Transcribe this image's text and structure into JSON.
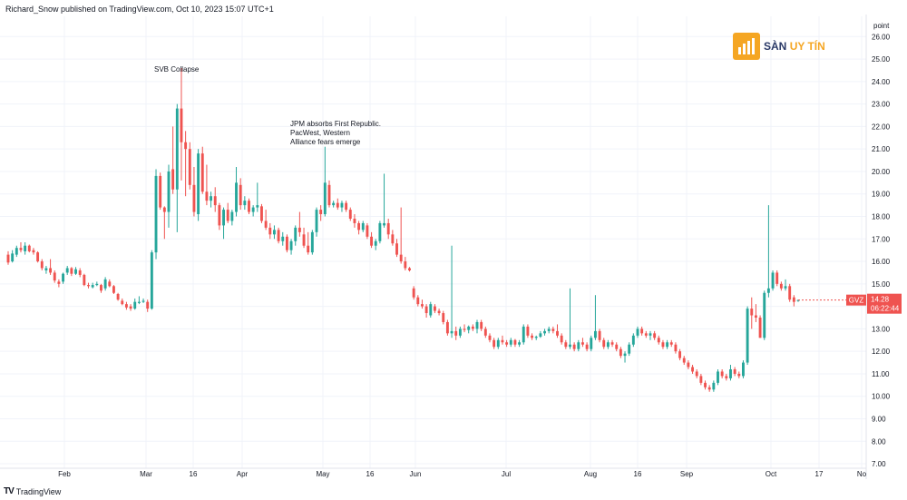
{
  "header": {
    "publisher": "Richard_Snow published on TradingView.com, Oct 10, 2023 15:07 UTC+1"
  },
  "footer": {
    "brand": "TradingView"
  },
  "watermark": {
    "part1": "SÀN",
    "part2": "UY TÍN"
  },
  "colors": {
    "up": "#26a69a",
    "down": "#ef5350",
    "grid": "#f0f3fa",
    "axis_text": "#131722",
    "badge": "#ef5350"
  },
  "chart_data": {
    "type": "candlestick",
    "title": "",
    "y_unit_label": "point",
    "ylim": [
      6.8,
      26.9
    ],
    "y_ticks": [
      "26.00",
      "25.00",
      "24.00",
      "23.00",
      "22.00",
      "21.00",
      "20.00",
      "19.00",
      "18.00",
      "17.00",
      "16.00",
      "15.00",
      "14.00",
      "13.00",
      "12.00",
      "11.00",
      "10.00",
      "9.00",
      "8.00",
      "7.00"
    ],
    "x_tick_labels": [
      "Feb",
      "Mar",
      "16",
      "Apr",
      "May",
      "16",
      "Jun",
      "Jul",
      "Aug",
      "16",
      "Sep",
      "Oct",
      "17",
      "No"
    ],
    "last_price": {
      "symbol": "GVZ",
      "value": "14.28",
      "countdown": "06:22:44"
    },
    "annotations": [
      {
        "text": "SVB Collapse"
      },
      {
        "text": "JPM absorbs First Republic. PacWest, Western Alliance fears emerge"
      }
    ],
    "ohlc": [
      [
        16.3,
        16.45,
        15.85,
        15.95
      ],
      [
        16.0,
        16.5,
        15.95,
        16.35
      ],
      [
        16.3,
        16.7,
        16.2,
        16.6
      ],
      [
        16.6,
        16.85,
        16.4,
        16.5
      ],
      [
        16.45,
        16.85,
        16.3,
        16.7
      ],
      [
        16.7,
        16.75,
        16.4,
        16.45
      ],
      [
        16.5,
        16.6,
        16.3,
        16.4
      ],
      [
        16.4,
        16.45,
        15.95,
        16.0
      ],
      [
        16.0,
        16.1,
        15.6,
        15.7
      ],
      [
        15.6,
        15.8,
        15.45,
        15.7
      ],
      [
        15.7,
        16.1,
        15.4,
        15.5
      ],
      [
        15.5,
        15.6,
        15.05,
        15.15
      ],
      [
        15.1,
        15.2,
        14.85,
        15.0
      ],
      [
        15.1,
        15.5,
        15.0,
        15.45
      ],
      [
        15.5,
        15.8,
        15.4,
        15.7
      ],
      [
        15.7,
        15.75,
        15.35,
        15.45
      ],
      [
        15.45,
        15.75,
        15.4,
        15.65
      ],
      [
        15.6,
        15.7,
        15.3,
        15.4
      ],
      [
        15.4,
        15.45,
        14.9,
        14.95
      ],
      [
        14.95,
        15.05,
        14.8,
        14.9
      ],
      [
        14.85,
        15.05,
        14.8,
        14.95
      ],
      [
        14.95,
        15.1,
        14.9,
        15.0
      ],
      [
        14.95,
        15.0,
        14.6,
        14.7
      ],
      [
        14.8,
        15.3,
        14.7,
        15.2
      ],
      [
        15.1,
        15.2,
        14.85,
        14.9
      ],
      [
        14.9,
        14.95,
        14.55,
        14.6
      ],
      [
        14.55,
        14.6,
        14.25,
        14.3
      ],
      [
        14.25,
        14.35,
        14.05,
        14.1
      ],
      [
        14.1,
        14.2,
        13.85,
        13.95
      ],
      [
        14.0,
        14.1,
        13.8,
        13.9
      ],
      [
        13.9,
        14.35,
        13.85,
        14.2
      ],
      [
        14.15,
        14.45,
        14.1,
        14.2
      ],
      [
        14.2,
        14.35,
        14.15,
        14.25
      ],
      [
        14.2,
        14.3,
        13.75,
        13.9
      ],
      [
        13.9,
        16.5,
        13.85,
        16.4
      ],
      [
        16.4,
        20.1,
        16.1,
        19.8
      ],
      [
        19.8,
        19.95,
        18.3,
        18.4
      ],
      [
        18.4,
        18.45,
        17.0,
        18.2
      ],
      [
        18.2,
        20.3,
        17.5,
        20.0
      ],
      [
        20.1,
        22.0,
        19.0,
        19.2
      ],
      [
        19.2,
        23.0,
        17.3,
        22.8
      ],
      [
        22.8,
        24.6,
        19.6,
        21.3
      ],
      [
        21.3,
        21.8,
        18.9,
        21.0
      ],
      [
        21.0,
        21.3,
        19.2,
        19.4
      ],
      [
        19.4,
        20.2,
        18.0,
        18.2
      ],
      [
        18.1,
        21.0,
        17.8,
        20.8
      ],
      [
        20.8,
        21.1,
        19.0,
        19.1
      ],
      [
        19.1,
        20.3,
        18.5,
        18.7
      ],
      [
        18.7,
        19.1,
        18.4,
        18.9
      ],
      [
        18.9,
        19.3,
        18.2,
        18.5
      ],
      [
        18.5,
        18.6,
        17.4,
        17.6
      ],
      [
        17.6,
        18.4,
        17.0,
        18.3
      ],
      [
        18.3,
        18.6,
        17.7,
        17.8
      ],
      [
        17.8,
        18.3,
        17.6,
        18.2
      ],
      [
        18.2,
        20.2,
        18.0,
        19.5
      ],
      [
        19.4,
        19.7,
        18.3,
        18.5
      ],
      [
        18.5,
        18.9,
        18.3,
        18.7
      ],
      [
        18.7,
        18.8,
        18.1,
        18.2
      ],
      [
        18.2,
        18.5,
        18.0,
        18.4
      ],
      [
        18.4,
        19.5,
        18.2,
        18.5
      ],
      [
        18.45,
        18.55,
        17.7,
        17.8
      ],
      [
        17.8,
        18.3,
        17.4,
        17.5
      ],
      [
        17.5,
        17.7,
        17.0,
        17.2
      ],
      [
        17.2,
        17.6,
        17.0,
        17.4
      ],
      [
        17.4,
        17.5,
        16.8,
        16.9
      ],
      [
        16.9,
        17.3,
        16.7,
        17.1
      ],
      [
        17.1,
        17.2,
        16.4,
        16.5
      ],
      [
        16.5,
        17.0,
        16.3,
        16.9
      ],
      [
        16.9,
        17.6,
        16.7,
        17.5
      ],
      [
        17.5,
        18.2,
        17.1,
        17.3
      ],
      [
        17.2,
        17.5,
        16.6,
        16.7
      ],
      [
        16.7,
        17.3,
        16.3,
        16.4
      ],
      [
        16.4,
        17.4,
        16.3,
        17.3
      ],
      [
        17.3,
        18.4,
        17.1,
        18.3
      ],
      [
        18.3,
        18.5,
        17.8,
        18.1
      ],
      [
        18.1,
        21.1,
        18.0,
        19.5
      ],
      [
        19.4,
        19.6,
        18.4,
        18.5
      ],
      [
        18.5,
        18.7,
        18.4,
        18.6
      ],
      [
        18.6,
        18.8,
        18.3,
        18.4
      ],
      [
        18.4,
        18.7,
        18.2,
        18.6
      ],
      [
        18.6,
        18.7,
        18.2,
        18.3
      ],
      [
        18.3,
        18.4,
        17.8,
        17.9
      ],
      [
        17.9,
        18.1,
        17.5,
        17.7
      ],
      [
        17.7,
        17.8,
        17.2,
        17.4
      ],
      [
        17.4,
        17.8,
        17.3,
        17.7
      ],
      [
        17.6,
        17.7,
        17.0,
        17.1
      ],
      [
        17.1,
        17.3,
        16.6,
        16.7
      ],
      [
        16.7,
        17.0,
        16.5,
        16.9
      ],
      [
        16.9,
        17.8,
        16.8,
        17.7
      ],
      [
        17.6,
        19.9,
        17.5,
        17.7
      ],
      [
        17.7,
        17.9,
        17.0,
        17.2
      ],
      [
        17.2,
        17.4,
        16.7,
        16.8
      ],
      [
        16.8,
        17.0,
        16.2,
        16.3
      ],
      [
        16.3,
        18.4,
        15.9,
        16.0
      ],
      [
        16.0,
        16.2,
        15.6,
        15.7
      ],
      [
        15.7,
        15.75,
        15.55,
        15.6
      ],
      [
        14.8,
        14.9,
        14.3,
        14.4
      ],
      [
        14.4,
        14.5,
        14.0,
        14.1
      ],
      [
        14.1,
        14.3,
        13.9,
        14.0
      ],
      [
        14.0,
        14.1,
        13.5,
        13.7
      ],
      [
        13.6,
        14.2,
        13.5,
        14.1
      ],
      [
        14.0,
        14.1,
        13.7,
        13.8
      ],
      [
        13.8,
        13.9,
        13.6,
        13.7
      ],
      [
        13.7,
        13.8,
        13.2,
        13.3
      ],
      [
        13.3,
        13.4,
        12.7,
        12.8
      ],
      [
        12.8,
        16.7,
        12.6,
        12.9
      ],
      [
        12.9,
        13.1,
        12.5,
        12.7
      ],
      [
        12.7,
        13.1,
        12.6,
        13.0
      ],
      [
        13.0,
        13.2,
        12.85,
        12.95
      ],
      [
        12.95,
        13.15,
        12.8,
        13.1
      ],
      [
        13.1,
        13.2,
        12.9,
        13.0
      ],
      [
        13.0,
        13.4,
        12.8,
        13.3
      ],
      [
        13.3,
        13.4,
        12.9,
        13.0
      ],
      [
        13.0,
        13.1,
        12.6,
        12.7
      ],
      [
        12.7,
        12.8,
        12.4,
        12.5
      ],
      [
        12.5,
        12.6,
        12.1,
        12.2
      ],
      [
        12.2,
        12.6,
        12.1,
        12.5
      ],
      [
        12.5,
        12.7,
        12.3,
        12.4
      ],
      [
        12.4,
        12.5,
        12.2,
        12.3
      ],
      [
        12.3,
        12.6,
        12.2,
        12.5
      ],
      [
        12.5,
        12.55,
        12.2,
        12.3
      ],
      [
        12.3,
        12.5,
        12.2,
        12.4
      ],
      [
        12.4,
        13.2,
        12.3,
        13.1
      ],
      [
        13.1,
        13.2,
        12.6,
        12.7
      ],
      [
        12.7,
        12.8,
        12.5,
        12.6
      ],
      [
        12.6,
        12.7,
        12.5,
        12.65
      ],
      [
        12.65,
        12.9,
        12.6,
        12.8
      ],
      [
        12.8,
        13.0,
        12.7,
        12.9
      ],
      [
        12.9,
        13.1,
        12.8,
        13.0
      ],
      [
        13.0,
        13.1,
        12.8,
        12.9
      ],
      [
        12.9,
        13.2,
        12.6,
        12.7
      ],
      [
        12.7,
        12.8,
        12.3,
        12.4
      ],
      [
        12.4,
        12.5,
        12.1,
        12.2
      ],
      [
        12.2,
        14.8,
        12.1,
        12.3
      ],
      [
        12.3,
        12.4,
        12.0,
        12.1
      ],
      [
        12.1,
        12.5,
        12.0,
        12.4
      ],
      [
        12.4,
        12.6,
        12.2,
        12.3
      ],
      [
        12.3,
        12.4,
        12.0,
        12.1
      ],
      [
        12.1,
        12.7,
        12.0,
        12.6
      ],
      [
        12.6,
        14.5,
        12.5,
        12.9
      ],
      [
        12.9,
        13.0,
        12.4,
        12.5
      ],
      [
        12.5,
        12.6,
        12.1,
        12.2
      ],
      [
        12.2,
        12.5,
        12.1,
        12.4
      ],
      [
        12.4,
        12.5,
        12.2,
        12.3
      ],
      [
        12.3,
        12.4,
        12.0,
        12.1
      ],
      [
        12.1,
        12.2,
        11.7,
        11.8
      ],
      [
        11.8,
        12.0,
        11.5,
        11.9
      ],
      [
        11.9,
        12.4,
        11.8,
        12.3
      ],
      [
        12.3,
        12.8,
        12.2,
        12.7
      ],
      [
        12.7,
        13.1,
        12.6,
        13.0
      ],
      [
        13.0,
        13.1,
        12.7,
        12.8
      ],
      [
        12.8,
        12.9,
        12.6,
        12.7
      ],
      [
        12.7,
        12.9,
        12.5,
        12.8
      ],
      [
        12.8,
        12.9,
        12.5,
        12.6
      ],
      [
        12.6,
        12.7,
        12.3,
        12.4
      ],
      [
        12.4,
        12.5,
        12.1,
        12.2
      ],
      [
        12.2,
        12.5,
        12.1,
        12.4
      ],
      [
        12.4,
        12.5,
        12.2,
        12.3
      ],
      [
        12.3,
        12.4,
        11.9,
        12.0
      ],
      [
        12.0,
        12.1,
        11.6,
        11.7
      ],
      [
        11.7,
        11.8,
        11.4,
        11.5
      ],
      [
        11.5,
        11.6,
        11.2,
        11.3
      ],
      [
        11.3,
        11.4,
        11.0,
        11.1
      ],
      [
        11.1,
        11.2,
        10.8,
        10.9
      ],
      [
        10.9,
        11.0,
        10.5,
        10.6
      ],
      [
        10.6,
        10.7,
        10.3,
        10.4
      ],
      [
        10.4,
        10.5,
        10.2,
        10.3
      ],
      [
        10.3,
        10.7,
        10.2,
        10.6
      ],
      [
        10.6,
        11.2,
        10.5,
        11.1
      ],
      [
        11.1,
        11.2,
        10.8,
        10.9
      ],
      [
        10.9,
        11.0,
        10.7,
        10.8
      ],
      [
        10.8,
        11.4,
        10.7,
        11.2
      ],
      [
        11.2,
        11.3,
        10.9,
        11.0
      ],
      [
        11.0,
        11.1,
        10.8,
        10.9
      ],
      [
        10.9,
        11.6,
        10.8,
        11.5
      ],
      [
        11.5,
        14.0,
        11.4,
        13.9
      ],
      [
        13.9,
        14.4,
        13.0,
        13.6
      ],
      [
        13.6,
        14.1,
        13.3,
        13.5
      ],
      [
        13.5,
        13.6,
        12.6,
        12.6
      ],
      [
        12.6,
        14.7,
        12.5,
        14.6
      ],
      [
        14.6,
        18.5,
        14.4,
        14.8
      ],
      [
        14.8,
        15.6,
        14.7,
        15.5
      ],
      [
        15.5,
        15.6,
        14.9,
        15.0
      ],
      [
        15.0,
        15.1,
        14.7,
        14.8
      ],
      [
        14.8,
        15.2,
        14.7,
        14.9
      ],
      [
        14.9,
        15.0,
        14.2,
        14.3
      ],
      [
        14.4,
        14.5,
        14.0,
        14.2
      ],
      [
        14.28,
        14.3,
        14.2,
        14.28
      ]
    ]
  }
}
